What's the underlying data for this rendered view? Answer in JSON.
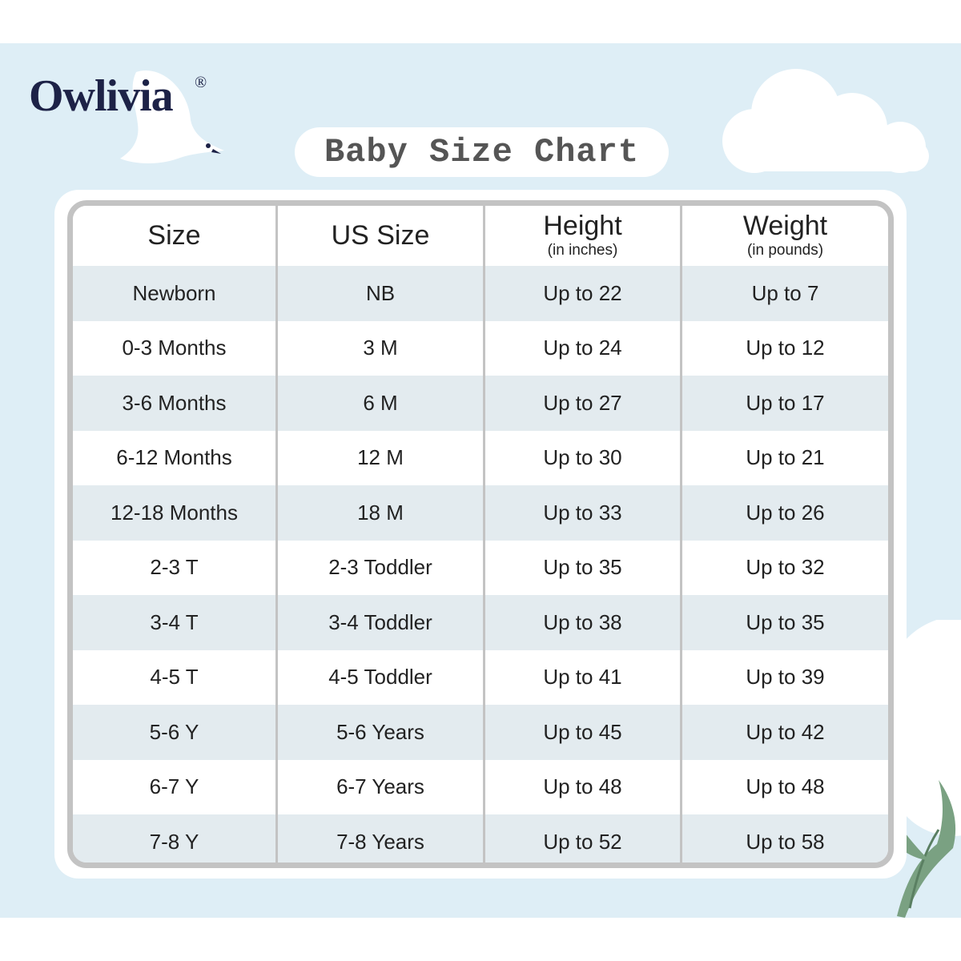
{
  "brand": {
    "name": "Owlivia",
    "registered": "®"
  },
  "title": "Baby Size Chart",
  "table": {
    "headers": [
      {
        "label": "Size",
        "sub": ""
      },
      {
        "label": "US Size",
        "sub": ""
      },
      {
        "label": "Height",
        "sub": "(in inches)"
      },
      {
        "label": "Weight",
        "sub": "(in pounds)"
      }
    ],
    "rows": [
      [
        "Newborn",
        "NB",
        "Up to 22",
        "Up to 7"
      ],
      [
        "0-3 Months",
        "3 M",
        "Up to 24",
        "Up to 12"
      ],
      [
        "3-6 Months",
        "6 M",
        "Up to 27",
        "Up to 17"
      ],
      [
        "6-12 Months",
        "12 M",
        "Up to 30",
        "Up to 21"
      ],
      [
        "12-18 Months",
        "18 M",
        "Up to 33",
        "Up to 26"
      ],
      [
        "2-3 T",
        "2-3 Toddler",
        "Up to 35",
        "Up to 32"
      ],
      [
        "3-4 T",
        "3-4 Toddler",
        "Up to 38",
        "Up to 35"
      ],
      [
        "4-5 T",
        "4-5 Toddler",
        "Up to 41",
        "Up to 39"
      ],
      [
        "5-6 Y",
        "5-6 Years",
        "Up to 45",
        "Up to 42"
      ],
      [
        "6-7 Y",
        "6-7 Years",
        "Up to 48",
        "Up to 48"
      ],
      [
        "7-8 Y",
        "7-8 Years",
        "Up to 52",
        "Up to 58"
      ]
    ]
  },
  "colors": {
    "background": "#deeef6",
    "brand": "#1d2247",
    "row_shade": "#e3ebef",
    "border": "#c3c3c3",
    "leaf": "#7aa182"
  },
  "decorations": [
    "bird-icon",
    "cloud-icon",
    "cotton-icon"
  ]
}
